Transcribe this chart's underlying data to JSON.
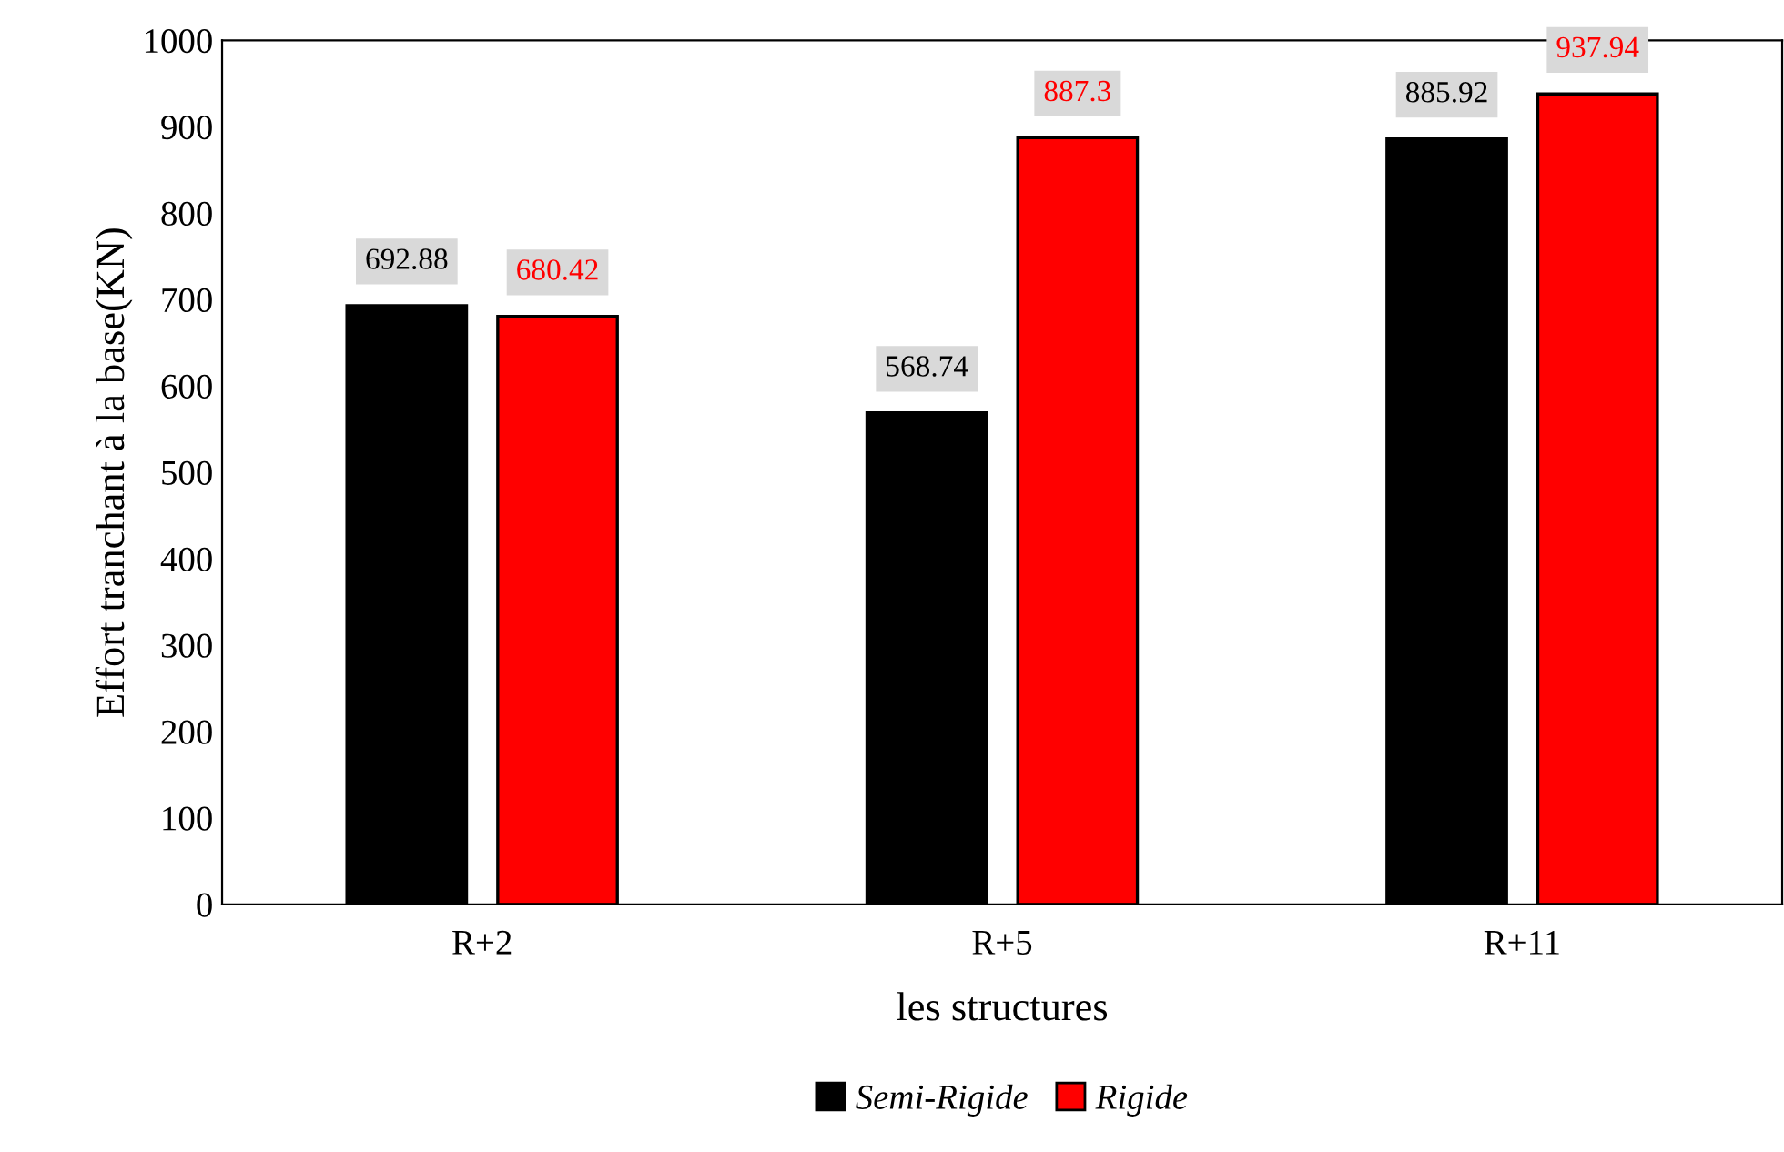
{
  "chart_data": {
    "type": "bar",
    "xlabel": "les structures",
    "ylabel": "Effort tranchant à la base(KN)",
    "categories": [
      "R+2",
      "R+5",
      "R+11"
    ],
    "series": [
      {
        "name": "Semi-Rigide",
        "color": "#000000",
        "values": [
          692.88,
          568.74,
          885.92
        ]
      },
      {
        "name": "Rigide",
        "color": "#ff0000",
        "values": [
          680.42,
          887.3,
          937.94
        ]
      }
    ],
    "ylim": [
      0,
      1000
    ],
    "yticks": [
      0,
      100,
      200,
      300,
      400,
      500,
      600,
      700,
      800,
      900,
      1000
    ],
    "grid": false,
    "legend": "bottom",
    "data_labels": true
  }
}
